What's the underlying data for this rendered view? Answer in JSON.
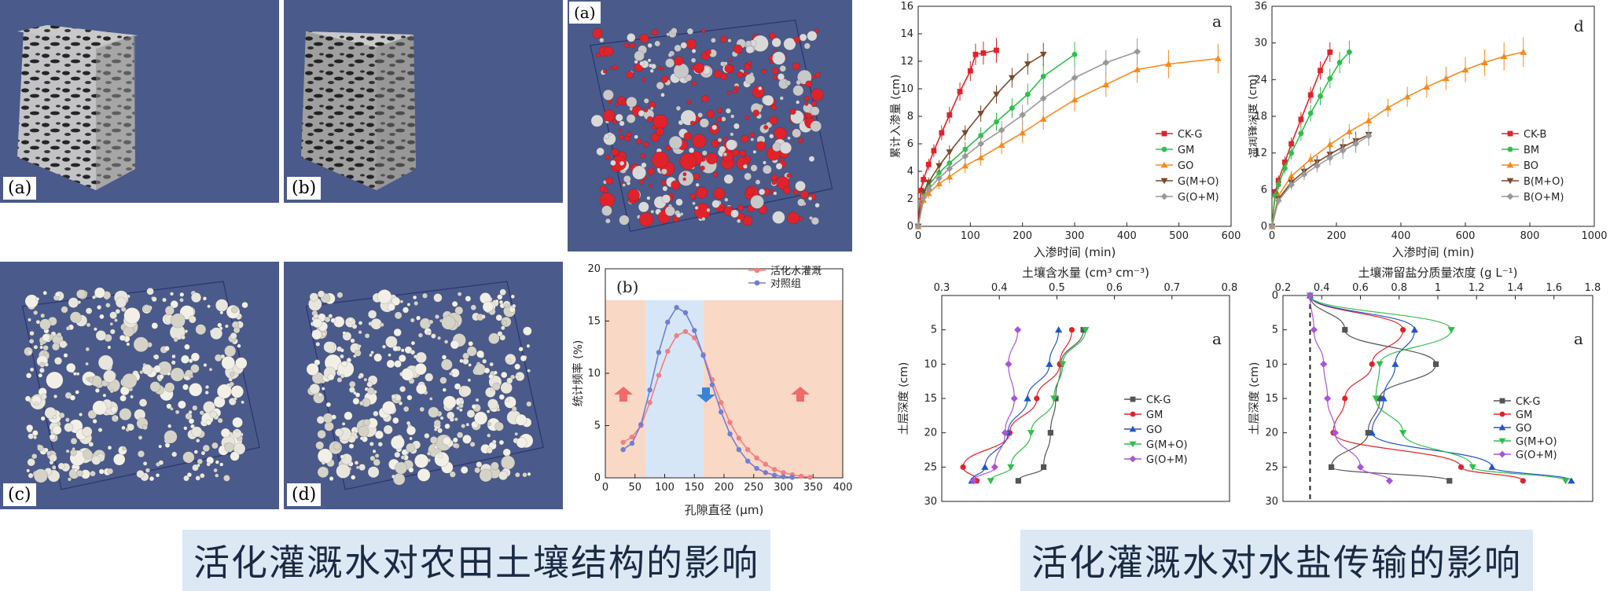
{
  "left_panels": {
    "labels": [
      "(a)",
      "(b)",
      "(c)",
      "(d)"
    ],
    "sphere_label": "(a)"
  },
  "captions": {
    "left": "活化灌溉水对农田土壤结构的影响",
    "right": "活化灌溉水对水盐传输的影响"
  },
  "colors": {
    "panel_bg": "#4a5a8a",
    "red": "#e0232a",
    "green": "#2fbf4a",
    "orange": "#f58a1f",
    "brown": "#7a4a2a",
    "gray": "#999999",
    "blue": "#2455c8",
    "violet": "#a855d8",
    "pink": "#f08080",
    "lightblue": "#6f7fd6"
  },
  "chart_data": [
    {
      "id": "pore-distribution",
      "type": "line",
      "panel_label": "(b)",
      "xlabel": "孔隙直径 (μm)",
      "ylabel": "统计频率 (%)",
      "xlim": [
        0,
        400
      ],
      "ylim": [
        0,
        20
      ],
      "xticks": [
        0,
        50,
        100,
        150,
        200,
        250,
        300,
        350,
        400
      ],
      "yticks": [
        0,
        5,
        10,
        15,
        20
      ],
      "shaded_regions": [
        {
          "from": 0,
          "to": 68,
          "color": "#f9d8c6"
        },
        {
          "from": 68,
          "to": 165,
          "color": "#d6e6f6"
        },
        {
          "from": 165,
          "to": 400,
          "color": "#f9d8c6"
        }
      ],
      "series": [
        {
          "name": "活化水灌溉",
          "color": "#f08080",
          "x": [
            30,
            45,
            60,
            75,
            90,
            105,
            120,
            135,
            150,
            165,
            180,
            195,
            210,
            225,
            240,
            255,
            270,
            285,
            300,
            315,
            330,
            345
          ],
          "y": [
            3.4,
            3.9,
            5.0,
            7.2,
            9.8,
            12.1,
            13.6,
            14.0,
            13.4,
            11.8,
            9.4,
            7.2,
            5.3,
            3.8,
            2.7,
            1.9,
            1.3,
            0.8,
            0.5,
            0.3,
            0.15,
            0.05
          ]
        },
        {
          "name": "对照组",
          "color": "#6f7fd6",
          "x": [
            30,
            45,
            60,
            75,
            90,
            105,
            120,
            135,
            150,
            165,
            180,
            195,
            210,
            225,
            240,
            255,
            270,
            285,
            300,
            315
          ],
          "y": [
            2.7,
            3.3,
            5.1,
            8.4,
            12.0,
            14.9,
            16.3,
            15.8,
            14.1,
            11.7,
            8.9,
            6.3,
            4.2,
            2.7,
            1.6,
            0.9,
            0.5,
            0.25,
            0.1,
            0.05
          ]
        }
      ]
    },
    {
      "id": "cumulative-infiltration",
      "type": "line",
      "panel_label": "a",
      "xlabel": "入渗时间 (min)",
      "ylabel": "累计入渗量 (cm)",
      "xlim": [
        0,
        600
      ],
      "ylim": [
        0,
        16
      ],
      "xticks": [
        0,
        100,
        200,
        300,
        400,
        500,
        600
      ],
      "yticks": [
        0,
        2,
        4,
        6,
        8,
        10,
        12,
        14,
        16
      ],
      "series": [
        {
          "name": "CK-G",
          "color": "#e0232a",
          "marker": "square",
          "x": [
            0,
            5,
            10,
            20,
            30,
            45,
            60,
            80,
            100,
            110,
            125,
            150
          ],
          "y": [
            0,
            2.6,
            3.4,
            4.5,
            5.5,
            6.8,
            8.1,
            9.8,
            11.3,
            12.5,
            12.6,
            12.8
          ]
        },
        {
          "name": "GM",
          "color": "#2fbf4a",
          "marker": "circle",
          "x": [
            0,
            10,
            20,
            40,
            60,
            90,
            120,
            150,
            180,
            210,
            240,
            300
          ],
          "y": [
            0,
            2.4,
            3.0,
            3.9,
            4.6,
            5.6,
            6.6,
            7.6,
            8.6,
            9.6,
            10.9,
            12.5
          ]
        },
        {
          "name": "GO",
          "color": "#f58a1f",
          "marker": "triangle",
          "x": [
            0,
            10,
            20,
            40,
            60,
            90,
            120,
            160,
            200,
            240,
            300,
            360,
            420,
            480,
            575
          ],
          "y": [
            0,
            1.9,
            2.4,
            3.1,
            3.6,
            4.4,
            5.0,
            5.9,
            6.8,
            7.8,
            9.2,
            10.3,
            11.4,
            11.8,
            12.2
          ]
        },
        {
          "name": "G(M+O)",
          "color": "#7a4a2a",
          "marker": "triangle-down",
          "x": [
            0,
            10,
            20,
            40,
            60,
            90,
            120,
            150,
            180,
            210,
            240
          ],
          "y": [
            0,
            2.5,
            3.2,
            4.4,
            5.4,
            6.8,
            8.2,
            9.6,
            10.8,
            11.8,
            12.5
          ]
        },
        {
          "name": "G(O+M)",
          "color": "#999999",
          "marker": "diamond",
          "x": [
            0,
            10,
            20,
            40,
            60,
            90,
            120,
            160,
            200,
            240,
            300,
            360,
            420
          ],
          "y": [
            0,
            2.1,
            2.7,
            3.5,
            4.2,
            5.1,
            6.0,
            7.0,
            8.1,
            9.3,
            10.8,
            11.9,
            12.7
          ]
        }
      ],
      "legend": "center-right"
    },
    {
      "id": "wetting-front",
      "type": "line",
      "panel_label": "d",
      "xlabel": "入渗时间 (min)",
      "ylabel": "湿润锋深度 (cm)",
      "xlim": [
        0,
        1000
      ],
      "ylim": [
        0,
        36
      ],
      "xticks": [
        0,
        200,
        400,
        600,
        800,
        1000
      ],
      "yticks": [
        0,
        6,
        12,
        18,
        24,
        30,
        36
      ],
      "series": [
        {
          "name": "CK-B",
          "color": "#e0232a",
          "marker": "square",
          "x": [
            0,
            10,
            20,
            40,
            60,
            90,
            120,
            150,
            180
          ],
          "y": [
            0,
            5.5,
            7.5,
            10.5,
            13.5,
            17.5,
            21.5,
            25.5,
            28.5
          ]
        },
        {
          "name": "BM",
          "color": "#2fbf4a",
          "marker": "circle",
          "x": [
            0,
            10,
            20,
            40,
            60,
            90,
            120,
            150,
            180,
            210,
            240
          ],
          "y": [
            0,
            5.0,
            6.8,
            9.5,
            12.0,
            15.2,
            18.5,
            21.3,
            24.2,
            26.8,
            28.5
          ]
        },
        {
          "name": "BO",
          "color": "#f58a1f",
          "marker": "triangle",
          "x": [
            0,
            20,
            60,
            120,
            180,
            240,
            300,
            360,
            420,
            480,
            540,
            600,
            660,
            720,
            780
          ],
          "y": [
            0,
            5.0,
            8.2,
            11.0,
            13.4,
            15.5,
            17.3,
            19.4,
            21.2,
            22.8,
            24.2,
            25.6,
            26.8,
            27.8,
            28.5
          ]
        },
        {
          "name": "B(M+O)",
          "color": "#7a4a2a",
          "marker": "triangle-down",
          "x": [
            0,
            20,
            60,
            100,
            140,
            180,
            220,
            260,
            300
          ],
          "y": [
            0,
            4.5,
            7.2,
            9.0,
            10.5,
            11.8,
            13.0,
            14.0,
            15.0
          ]
        },
        {
          "name": "B(O+M)",
          "color": "#999999",
          "marker": "diamond",
          "x": [
            0,
            20,
            60,
            100,
            140,
            180,
            220,
            260,
            300
          ],
          "y": [
            0,
            4.2,
            6.8,
            8.5,
            9.9,
            11.2,
            12.4,
            13.5,
            14.8
          ]
        }
      ],
      "legend": "center-right"
    },
    {
      "id": "water-content-profile",
      "type": "scatter",
      "panel_label": "a",
      "xlabel": "土壤含水量 (cm³ cm⁻³)",
      "ylabel": "土层深度 (cm)",
      "xlim": [
        0.3,
        0.8
      ],
      "ylim": [
        30,
        0
      ],
      "xticks": [
        0.3,
        0.4,
        0.5,
        0.6,
        0.7,
        0.8
      ],
      "yticks": [
        5,
        10,
        15,
        20,
        25,
        30
      ],
      "series": [
        {
          "name": "CK-G",
          "color": "#555555",
          "marker": "square",
          "depth": [
            5,
            10,
            15,
            20,
            25,
            27
          ],
          "value": [
            0.546,
            0.507,
            0.498,
            0.489,
            0.477,
            0.433
          ]
        },
        {
          "name": "GM",
          "color": "#e0232a",
          "marker": "circle",
          "depth": [
            5,
            10,
            15,
            20,
            25,
            27
          ],
          "value": [
            0.526,
            0.505,
            0.465,
            0.418,
            0.337,
            0.361
          ]
        },
        {
          "name": "GO",
          "color": "#2455c8",
          "marker": "triangle",
          "depth": [
            5,
            10,
            15,
            20,
            25,
            27
          ],
          "value": [
            0.503,
            0.487,
            0.449,
            0.415,
            0.375,
            0.352
          ]
        },
        {
          "name": "G(M+O)",
          "color": "#2fbf4a",
          "marker": "triangle-down",
          "depth": [
            5,
            10,
            15,
            20,
            25,
            27
          ],
          "value": [
            0.55,
            0.51,
            0.495,
            0.455,
            0.42,
            0.385
          ]
        },
        {
          "name": "G(O+M)",
          "color": "#a855d8",
          "marker": "diamond",
          "depth": [
            5,
            10,
            15,
            20,
            25,
            27
          ],
          "value": [
            0.432,
            0.416,
            0.426,
            0.41,
            0.392,
            0.355
          ]
        }
      ],
      "legend": "center-right"
    },
    {
      "id": "salt-profile",
      "type": "scatter",
      "panel_label": "a",
      "xlabel": "土壤滞留盐分质量浓度 (g L⁻¹)",
      "ylabel": "土层深度 (cm)",
      "xlim": [
        0.2,
        1.8
      ],
      "ylim": [
        30,
        0
      ],
      "xticks": [
        0.2,
        0.4,
        0.6,
        0.8,
        1.0,
        1.2,
        1.4,
        1.6,
        1.8
      ],
      "yticks": [
        0,
        5,
        10,
        15,
        20,
        25,
        30
      ],
      "reference_line_x": 0.34,
      "series": [
        {
          "name": "CK-G",
          "color": "#555555",
          "marker": "square",
          "depth": [
            0,
            5,
            10,
            15,
            20,
            25,
            27
          ],
          "value": [
            0.34,
            0.52,
            0.99,
            0.7,
            0.64,
            0.45,
            1.06
          ]
        },
        {
          "name": "GM",
          "color": "#e0232a",
          "marker": "circle",
          "depth": [
            0,
            5,
            10,
            15,
            20,
            25,
            27
          ],
          "value": [
            0.34,
            0.82,
            0.66,
            0.52,
            0.46,
            1.12,
            1.44
          ]
        },
        {
          "name": "GO",
          "color": "#2455c8",
          "marker": "triangle",
          "depth": [
            0,
            5,
            10,
            15,
            20,
            25,
            27
          ],
          "value": [
            0.34,
            0.88,
            0.78,
            0.72,
            0.66,
            1.28,
            1.69
          ]
        },
        {
          "name": "G(M+O)",
          "color": "#2fbf4a",
          "marker": "triangle-down",
          "depth": [
            0,
            5,
            10,
            15,
            20,
            25,
            27
          ],
          "value": [
            0.34,
            1.07,
            0.7,
            0.68,
            0.82,
            1.18,
            1.66
          ]
        },
        {
          "name": "G(O+M)",
          "color": "#a855d8",
          "marker": "diamond",
          "depth": [
            0,
            5,
            10,
            15,
            20,
            25,
            27
          ],
          "value": [
            0.34,
            0.36,
            0.41,
            0.43,
            0.47,
            0.6,
            0.75
          ]
        }
      ],
      "legend": "center-right"
    }
  ]
}
